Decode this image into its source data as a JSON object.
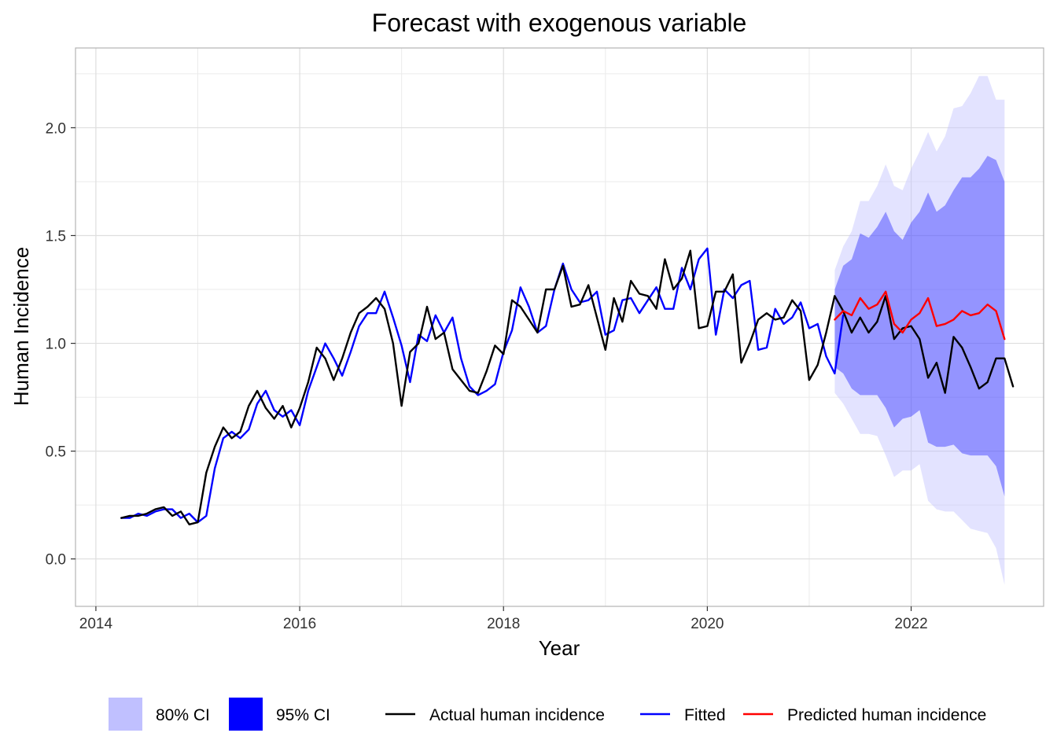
{
  "chart_data": {
    "type": "line",
    "title": "Forecast with exogenous variable",
    "xlabel": "Year",
    "ylabel": "Human Incidence",
    "xlim": [
      2013.8,
      2023.3
    ],
    "ylim": [
      -0.22,
      2.37
    ],
    "x_ticks": [
      2014,
      2016,
      2018,
      2020,
      2022
    ],
    "x_tick_labels": [
      "2014",
      "2016",
      "2018",
      "2020",
      "2022"
    ],
    "y_ticks": [
      0.0,
      0.5,
      1.0,
      1.5,
      2.0
    ],
    "y_tick_labels": [
      "0.0",
      "0.5",
      "1.0",
      "1.5",
      "2.0"
    ],
    "grid": true,
    "legend_position": "bottom",
    "colors": {
      "actual": "#000000",
      "fitted": "#0000ff",
      "predicted": "#ff0000",
      "ci80": "#c0c0ff",
      "ci95": "#0000ff"
    },
    "legend": [
      {
        "key": "ci80",
        "kind": "fill",
        "label": "80% CI"
      },
      {
        "key": "ci95",
        "kind": "fill",
        "label": "95% CI"
      },
      {
        "key": "actual",
        "kind": "line",
        "label": "Actual human incidence"
      },
      {
        "key": "fitted",
        "kind": "line",
        "label": "Fitted"
      },
      {
        "key": "predicted",
        "kind": "line",
        "label": "Predicted human incidence"
      }
    ],
    "series": [
      {
        "key": "actual",
        "name": "Actual human incidence",
        "x_start": 2014.25,
        "x_step": 0.08333,
        "values": [
          0.19,
          0.2,
          0.2,
          0.21,
          0.23,
          0.24,
          0.2,
          0.22,
          0.16,
          0.17,
          0.4,
          0.52,
          0.61,
          0.56,
          0.59,
          0.71,
          0.78,
          0.7,
          0.65,
          0.71,
          0.61,
          0.7,
          0.82,
          0.98,
          0.93,
          0.83,
          0.93,
          1.05,
          1.14,
          1.17,
          1.21,
          1.16,
          1.0,
          0.71,
          0.96,
          1.0,
          1.17,
          1.02,
          1.05,
          0.88,
          0.83,
          0.78,
          0.77,
          0.87,
          0.99,
          0.95,
          1.2,
          1.17,
          1.11,
          1.05,
          1.25,
          1.25,
          1.36,
          1.17,
          1.18,
          1.27,
          1.12,
          0.97,
          1.21,
          1.1,
          1.29,
          1.23,
          1.22,
          1.16,
          1.39,
          1.25,
          1.3,
          1.43,
          1.07,
          1.08,
          1.24,
          1.24,
          1.32,
          0.91,
          1.0,
          1.11,
          1.14,
          1.11,
          1.12,
          1.2,
          1.15,
          0.83,
          0.9,
          1.05,
          1.22,
          1.15,
          1.05,
          1.12,
          1.05,
          1.1,
          1.22,
          1.02,
          1.07,
          1.08,
          1.02,
          0.84,
          0.91,
          0.77,
          1.03,
          0.98,
          0.89,
          0.79,
          0.82,
          0.93,
          0.93,
          0.8
        ]
      },
      {
        "key": "fitted",
        "name": "Fitted",
        "x_start": 2014.25,
        "x_step": 0.08333,
        "values": [
          0.19,
          0.19,
          0.21,
          0.2,
          0.22,
          0.23,
          0.23,
          0.19,
          0.21,
          0.17,
          0.2,
          0.42,
          0.56,
          0.59,
          0.56,
          0.6,
          0.72,
          0.78,
          0.69,
          0.66,
          0.69,
          0.62,
          0.78,
          0.89,
          1.0,
          0.93,
          0.85,
          0.96,
          1.08,
          1.14,
          1.14,
          1.24,
          1.12,
          0.99,
          0.82,
          1.04,
          1.01,
          1.13,
          1.05,
          1.12,
          0.93,
          0.8,
          0.76,
          0.78,
          0.81,
          0.96,
          1.06,
          1.26,
          1.17,
          1.05,
          1.08,
          1.25,
          1.37,
          1.25,
          1.19,
          1.2,
          1.24,
          1.04,
          1.06,
          1.2,
          1.21,
          1.14,
          1.2,
          1.26,
          1.16,
          1.16,
          1.35,
          1.25,
          1.39,
          1.44,
          1.04,
          1.25,
          1.21,
          1.27,
          1.29,
          0.97,
          0.98,
          1.16,
          1.09,
          1.12,
          1.19,
          1.07,
          1.09,
          0.94,
          0.86,
          1.13
        ]
      },
      {
        "key": "predicted",
        "name": "Predicted human incidence",
        "x_start": 2021.25,
        "x_step": 0.08333,
        "values": [
          1.11,
          1.15,
          1.13,
          1.21,
          1.16,
          1.18,
          1.24,
          1.09,
          1.05,
          1.11,
          1.14,
          1.21,
          1.08,
          1.09,
          1.11,
          1.15,
          1.13,
          1.14,
          1.18,
          1.15,
          1.02
        ]
      }
    ],
    "ci80": {
      "x_start": 2021.25,
      "x_step": 0.08333,
      "lower": [
        0.77,
        0.72,
        0.65,
        0.58,
        0.58,
        0.57,
        0.48,
        0.38,
        0.41,
        0.41,
        0.44,
        0.27,
        0.23,
        0.22,
        0.22,
        0.18,
        0.14,
        0.13,
        0.12,
        0.05,
        -0.12
      ],
      "upper": [
        1.34,
        1.45,
        1.52,
        1.66,
        1.66,
        1.73,
        1.83,
        1.73,
        1.71,
        1.81,
        1.89,
        1.98,
        1.89,
        1.96,
        2.09,
        2.1,
        2.16,
        2.24,
        2.24,
        2.13,
        2.13
      ]
    },
    "ci95": {
      "x_start": 2021.25,
      "x_step": 0.08333,
      "lower": [
        0.89,
        0.86,
        0.79,
        0.76,
        0.76,
        0.76,
        0.7,
        0.61,
        0.65,
        0.66,
        0.69,
        0.54,
        0.52,
        0.52,
        0.53,
        0.49,
        0.48,
        0.48,
        0.48,
        0.43,
        0.29
      ],
      "upper": [
        1.25,
        1.36,
        1.39,
        1.51,
        1.49,
        1.54,
        1.61,
        1.52,
        1.48,
        1.56,
        1.61,
        1.7,
        1.61,
        1.64,
        1.71,
        1.77,
        1.77,
        1.81,
        1.87,
        1.85,
        1.75
      ]
    }
  }
}
